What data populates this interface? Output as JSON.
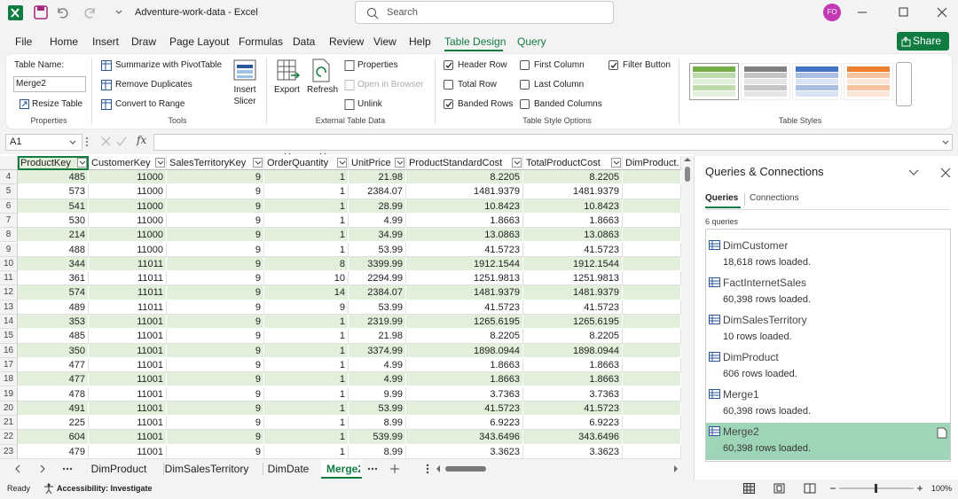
{
  "title_bar": {
    "file_name": "Adventure-work-data - Excel",
    "search_placeholder": "Search",
    "user_initials": "FO"
  },
  "menu": {
    "tabs": [
      "File",
      "Home",
      "Insert",
      "Draw",
      "Page Layout",
      "Formulas",
      "Data",
      "Review",
      "View",
      "Help",
      "Table Design",
      "Query"
    ],
    "active_tab": 10,
    "share": "Share"
  },
  "ribbon": {
    "properties": {
      "table_name_label": "Table Name:",
      "table_name": "Merge2",
      "resize_table": "Resize Table",
      "group_label": "Properties"
    },
    "tools": {
      "buttons": [
        "Summarize with PivotTable",
        "Remove Duplicates",
        "Convert to Range"
      ],
      "insert_slicer": "Insert Slicer",
      "group_label": "Tools"
    },
    "external": {
      "export": "Export",
      "refresh": "Refresh",
      "buttons": [
        "Properties",
        "Open in Browser",
        "Unlink"
      ],
      "disabled": [
        false,
        true,
        false
      ],
      "group_label": "External Table Data"
    },
    "style_options": {
      "options": [
        {
          "label": "Header Row",
          "checked": true
        },
        {
          "label": "Total Row",
          "checked": false
        },
        {
          "label": "Banded Rows",
          "checked": true
        },
        {
          "label": "First Column",
          "checked": false
        },
        {
          "label": "Last Column",
          "checked": false
        },
        {
          "label": "Banded Columns",
          "checked": false
        },
        {
          "label": "Filter Button",
          "checked": true
        }
      ],
      "group_label": "Table Style Options"
    },
    "table_styles": {
      "group_label": "Table Styles",
      "swatch_colors": [
        "#70ad47",
        "#7f7f7f",
        "#4472c4",
        "#ed7d31"
      ]
    }
  },
  "formula_bar": {
    "name_box": "A1",
    "fx": "fx"
  },
  "sheet": {
    "columns": [
      "ProductKey",
      "CustomerKey",
      "SalesTerritoryKey",
      "OrderQuantity",
      "UnitPrice",
      "ProductStandardCost",
      "TotalProductCost",
      "DimProduct."
    ],
    "row_numbers": [
      "4",
      "5",
      "6",
      "7",
      "8",
      "9",
      "10",
      "11",
      "12",
      "13",
      "14",
      "15",
      "16",
      "17",
      "18",
      "19",
      "20",
      "21",
      "22",
      "23"
    ],
    "rows": [
      [
        "485",
        "11000",
        "9",
        "1",
        "21.98",
        "8.2205",
        "8.2205"
      ],
      [
        "573",
        "11000",
        "9",
        "1",
        "2384.07",
        "1481.9379",
        "1481.9379"
      ],
      [
        "541",
        "11000",
        "9",
        "1",
        "28.99",
        "10.8423",
        "10.8423"
      ],
      [
        "530",
        "11000",
        "9",
        "1",
        "4.99",
        "1.8663",
        "1.8663"
      ],
      [
        "214",
        "11000",
        "9",
        "1",
        "34.99",
        "13.0863",
        "13.0863"
      ],
      [
        "488",
        "11000",
        "9",
        "1",
        "53.99",
        "41.5723",
        "41.5723"
      ],
      [
        "344",
        "11011",
        "9",
        "8",
        "3399.99",
        "1912.1544",
        "1912.1544"
      ],
      [
        "361",
        "11011",
        "9",
        "10",
        "2294.99",
        "1251.9813",
        "1251.9813"
      ],
      [
        "574",
        "11011",
        "9",
        "14",
        "2384.07",
        "1481.9379",
        "1481.9379"
      ],
      [
        "489",
        "11011",
        "9",
        "9",
        "53.99",
        "41.5723",
        "41.5723"
      ],
      [
        "353",
        "11001",
        "9",
        "1",
        "2319.99",
        "1265.6195",
        "1265.6195"
      ],
      [
        "485",
        "11001",
        "9",
        "1",
        "21.98",
        "8.2205",
        "8.2205"
      ],
      [
        "350",
        "11001",
        "9",
        "1",
        "3374.99",
        "1898.0944",
        "1898.0944"
      ],
      [
        "477",
        "11001",
        "9",
        "1",
        "4.99",
        "1.8663",
        "1.8663"
      ],
      [
        "477",
        "11001",
        "9",
        "1",
        "4.99",
        "1.8663",
        "1.8663"
      ],
      [
        "478",
        "11001",
        "9",
        "1",
        "9.99",
        "3.7363",
        "3.7363"
      ],
      [
        "491",
        "11001",
        "9",
        "1",
        "53.99",
        "41.5723",
        "41.5723"
      ],
      [
        "225",
        "11001",
        "9",
        "1",
        "8.99",
        "6.9223",
        "6.9223"
      ],
      [
        "604",
        "11001",
        "9",
        "1",
        "539.99",
        "343.6496",
        "343.6496"
      ],
      [
        "479",
        "11001",
        "9",
        "1",
        "8.99",
        "3.3623",
        "3.3623"
      ]
    ]
  },
  "sheet_tabs": {
    "tabs": [
      "DimProduct",
      "DimSalesTerritory",
      "DimDate",
      "Merge2"
    ],
    "active": 3
  },
  "status_bar": {
    "ready": "Ready",
    "accessibility": "Accessibility: Investigate",
    "zoom": "100%"
  },
  "queries_pane": {
    "title": "Queries & Connections",
    "tabs": [
      "Queries",
      "Connections"
    ],
    "count": "6 queries",
    "queries": [
      {
        "name": "DimCustomer",
        "status": "18,618 rows loaded."
      },
      {
        "name": "FactInternetSales",
        "status": "60,398 rows loaded."
      },
      {
        "name": "DimSalesTerritory",
        "status": "10 rows loaded."
      },
      {
        "name": "DimProduct",
        "status": "606 rows loaded."
      },
      {
        "name": "Merge1",
        "status": "60,398 rows loaded."
      },
      {
        "name": "Merge2",
        "status": "60,398 rows loaded."
      }
    ],
    "selected": 5
  }
}
